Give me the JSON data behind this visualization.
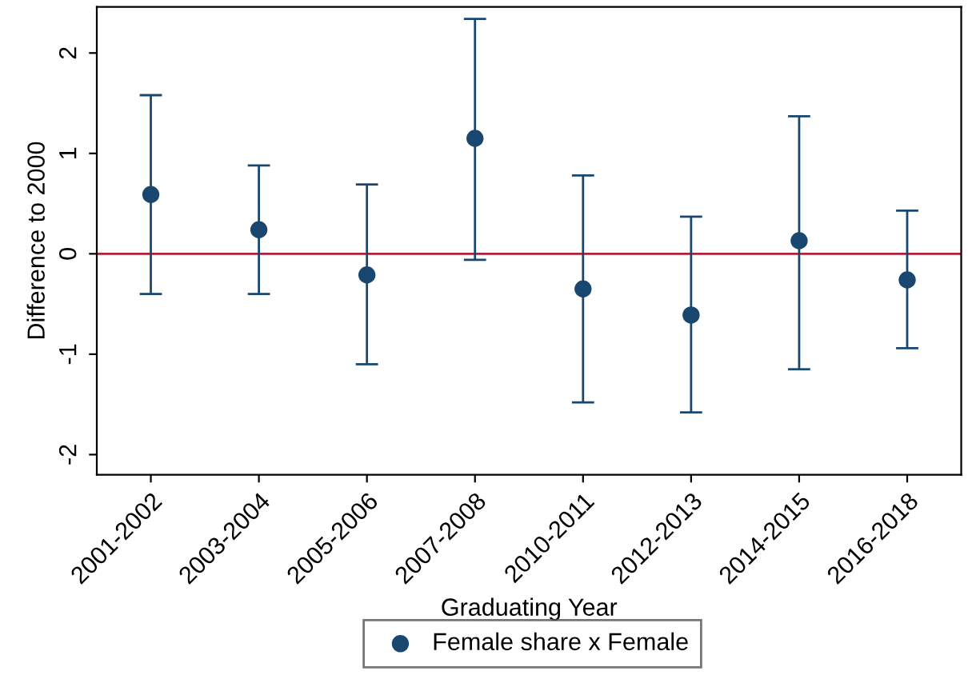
{
  "chart_data": {
    "type": "scatter",
    "xlabel": "Graduating Year",
    "ylabel": "Difference to 2000",
    "categories": [
      "2001-2002",
      "2003-2004",
      "2005-2006",
      "2007-2008",
      "2010-2011",
      "2012-2013",
      "2014-2015",
      "2016-2018"
    ],
    "series": [
      {
        "name": "Female share x Female",
        "color": "#1a476f",
        "values": [
          0.59,
          0.24,
          -0.21,
          1.15,
          -0.35,
          -0.61,
          0.13,
          -0.26
        ],
        "errors": [
          [
            -0.4,
            1.58
          ],
          [
            -0.4,
            0.88
          ],
          [
            -1.1,
            0.69
          ],
          [
            -0.06,
            2.34
          ],
          [
            -1.48,
            0.78
          ],
          [
            -1.58,
            0.37
          ],
          [
            -1.15,
            1.37
          ],
          [
            -0.94,
            0.43
          ]
        ]
      }
    ],
    "ylim": [
      -2.2,
      2.46
    ],
    "yticks": [
      -2,
      -1,
      0,
      1,
      2
    ],
    "ref_lines": [
      {
        "axis": "y",
        "value": 0,
        "color": "#b0203c"
      }
    ],
    "marker": "circle",
    "grid": false,
    "legend": "bottom"
  }
}
